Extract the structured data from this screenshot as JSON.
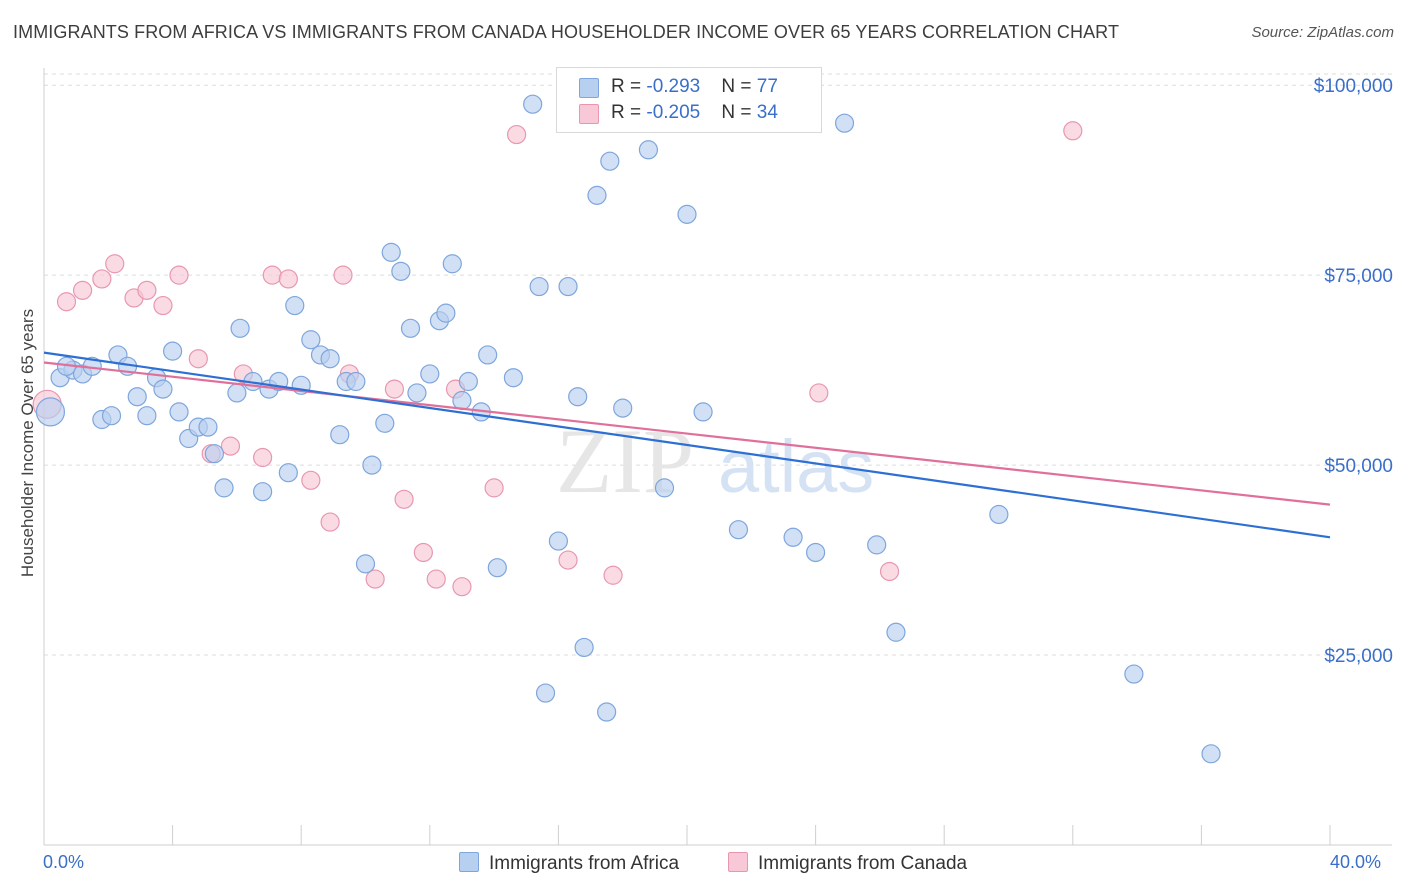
{
  "title": "IMMIGRANTS FROM AFRICA VS IMMIGRANTS FROM CANADA HOUSEHOLDER INCOME OVER 65 YEARS CORRELATION CHART",
  "source": "Source: ZipAtlas.com",
  "watermark": {
    "zip": "ZIP",
    "atlas": "atlas"
  },
  "colors": {
    "africa_fill": "#b8d0f0",
    "africa_stroke": "#7ea6dc",
    "africa_line": "#2d6fd2",
    "canada_fill": "#f8c8d6",
    "canada_stroke": "#e897b0",
    "canada_line": "#e0709a",
    "tick_text": "#3a6fc9"
  },
  "legend_top": [
    {
      "r_label": "R = ",
      "r_value": "-0.293",
      "n_label": "N = ",
      "n_value": "77"
    },
    {
      "r_label": "R = ",
      "r_value": "-0.205",
      "n_label": "N = ",
      "n_value": "34"
    }
  ],
  "chart_data": {
    "type": "scatter",
    "title": "IMMIGRANTS FROM AFRICA VS IMMIGRANTS FROM CANADA HOUSEHOLDER INCOME OVER 65 YEARS CORRELATION CHART",
    "xlabel": "",
    "ylabel": "Householder Income Over 65 years",
    "xlim": [
      0,
      40
    ],
    "ylim": [
      0,
      102000
    ],
    "x_tick_labels": [
      "0.0%",
      "40.0%"
    ],
    "y_ticks": [
      25000,
      50000,
      75000,
      100000
    ],
    "y_tick_labels": [
      "$25,000",
      "$50,000",
      "$75,000",
      "$100,000"
    ],
    "grid": true,
    "legend_position": "top-center and bottom",
    "series": [
      {
        "name": "Immigrants from Africa",
        "r": -0.293,
        "n": 77,
        "trend": {
          "x": [
            0,
            40
          ],
          "y": [
            64800,
            40500
          ]
        },
        "points": [
          [
            0.2,
            57000
          ],
          [
            0.5,
            61500
          ],
          [
            0.9,
            62500
          ],
          [
            1.2,
            62000
          ],
          [
            1.5,
            63000
          ],
          [
            1.8,
            56000
          ],
          [
            2.1,
            56500
          ],
          [
            2.3,
            64500
          ],
          [
            2.6,
            63000
          ],
          [
            2.9,
            59000
          ],
          [
            3.2,
            56500
          ],
          [
            3.5,
            61500
          ],
          [
            3.7,
            60000
          ],
          [
            4.0,
            65000
          ],
          [
            4.2,
            57000
          ],
          [
            4.5,
            53500
          ],
          [
            4.8,
            55000
          ],
          [
            5.1,
            55000
          ],
          [
            5.3,
            51500
          ],
          [
            5.6,
            47000
          ],
          [
            6.0,
            59500
          ],
          [
            6.1,
            68000
          ],
          [
            6.5,
            61000
          ],
          [
            6.8,
            46500
          ],
          [
            7.0,
            60000
          ],
          [
            7.3,
            61000
          ],
          [
            7.6,
            49000
          ],
          [
            7.8,
            71000
          ],
          [
            8.0,
            60500
          ],
          [
            8.3,
            66500
          ],
          [
            8.6,
            64500
          ],
          [
            8.9,
            64000
          ],
          [
            9.2,
            54000
          ],
          [
            9.4,
            61000
          ],
          [
            9.7,
            61000
          ],
          [
            10.0,
            37000
          ],
          [
            10.2,
            50000
          ],
          [
            10.6,
            55500
          ],
          [
            10.8,
            78000
          ],
          [
            11.1,
            75500
          ],
          [
            11.4,
            68000
          ],
          [
            11.6,
            59500
          ],
          [
            12.0,
            62000
          ],
          [
            12.3,
            69000
          ],
          [
            12.5,
            70000
          ],
          [
            12.7,
            76500
          ],
          [
            13.0,
            58500
          ],
          [
            13.2,
            61000
          ],
          [
            13.6,
            57000
          ],
          [
            13.8,
            64500
          ],
          [
            14.1,
            36500
          ],
          [
            14.6,
            61500
          ],
          [
            15.2,
            97500
          ],
          [
            15.4,
            73500
          ],
          [
            15.6,
            20000
          ],
          [
            16.0,
            40000
          ],
          [
            16.3,
            73500
          ],
          [
            16.6,
            59000
          ],
          [
            16.8,
            26000
          ],
          [
            17.2,
            85500
          ],
          [
            17.5,
            17500
          ],
          [
            17.6,
            90000
          ],
          [
            18.0,
            57500
          ],
          [
            18.8,
            91500
          ],
          [
            19.3,
            47000
          ],
          [
            20.0,
            83000
          ],
          [
            20.5,
            57000
          ],
          [
            21.6,
            41500
          ],
          [
            23.3,
            40500
          ],
          [
            24.0,
            38500
          ],
          [
            24.9,
            95000
          ],
          [
            25.9,
            39500
          ],
          [
            26.5,
            28000
          ],
          [
            29.7,
            43500
          ],
          [
            33.9,
            22500
          ],
          [
            36.3,
            12000
          ],
          [
            0.7,
            63000
          ]
        ]
      },
      {
        "name": "Immigrants from Canada",
        "r": -0.205,
        "n": 34,
        "trend": {
          "x": [
            0,
            40
          ],
          "y": [
            63500,
            44800
          ]
        },
        "points": [
          [
            0.1,
            58000
          ],
          [
            0.7,
            71500
          ],
          [
            1.2,
            73000
          ],
          [
            1.8,
            74500
          ],
          [
            2.2,
            76500
          ],
          [
            2.8,
            72000
          ],
          [
            3.2,
            73000
          ],
          [
            3.7,
            71000
          ],
          [
            4.2,
            75000
          ],
          [
            4.8,
            64000
          ],
          [
            5.2,
            51500
          ],
          [
            5.8,
            52500
          ],
          [
            6.2,
            62000
          ],
          [
            6.8,
            51000
          ],
          [
            7.1,
            75000
          ],
          [
            7.6,
            74500
          ],
          [
            8.3,
            48000
          ],
          [
            8.9,
            42500
          ],
          [
            9.3,
            75000
          ],
          [
            9.5,
            62000
          ],
          [
            10.3,
            35000
          ],
          [
            10.9,
            60000
          ],
          [
            11.2,
            45500
          ],
          [
            11.8,
            38500
          ],
          [
            12.2,
            35000
          ],
          [
            12.8,
            60000
          ],
          [
            13.0,
            34000
          ],
          [
            14.0,
            47000
          ],
          [
            14.7,
            93500
          ],
          [
            16.3,
            37500
          ],
          [
            17.7,
            35500
          ],
          [
            24.1,
            59500
          ],
          [
            26.3,
            36000
          ],
          [
            32.0,
            94000
          ]
        ]
      }
    ]
  },
  "bottom_legend": [
    "Immigrants from Africa",
    "Immigrants from Canada"
  ]
}
